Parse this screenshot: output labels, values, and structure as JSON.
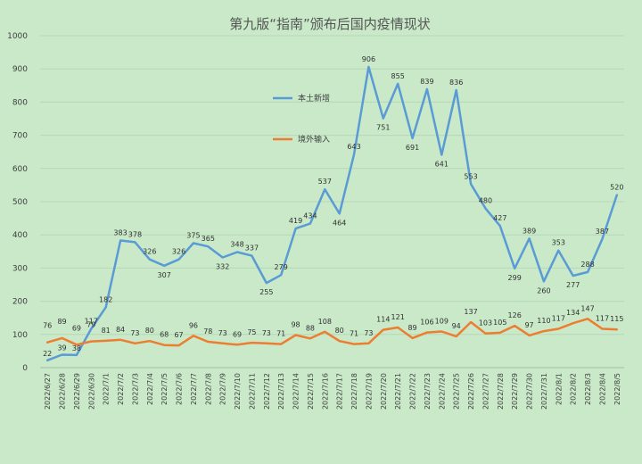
{
  "chart_data": {
    "type": "line",
    "title": "第九版“指南”颁布后国内疫情现状",
    "xlabel": "",
    "ylabel": "",
    "ylim": [
      0,
      1000
    ],
    "yticks": [
      0,
      100,
      200,
      300,
      400,
      500,
      600,
      700,
      800,
      900,
      1000
    ],
    "grid": "horizontal",
    "legend_position": "center-left",
    "categories": [
      "2022/6/27",
      "2022/6/28",
      "2022/6/29",
      "2022/6/30",
      "2022/7/1",
      "2022/7/2",
      "2022/7/3",
      "2022/7/4",
      "2022/7/5",
      "2022/7/6",
      "2022/7/7",
      "2022/7/8",
      "2022/7/9",
      "2022/7/10",
      "2022/7/11",
      "2022/7/12",
      "2022/7/13",
      "2022/7/14",
      "2022/7/15",
      "2022/7/16",
      "2022/7/17",
      "2022/7/18",
      "2022/7/19",
      "2022/7/20",
      "2022/7/21",
      "2022/7/22",
      "2022/7/23",
      "2022/7/24",
      "2022/7/25",
      "2022/7/26",
      "2022/7/27",
      "2022/7/28",
      "2022/7/29",
      "2022/7/30",
      "2022/7/31",
      "2022/8/1",
      "2022/8/2",
      "2022/8/3",
      "2022/8/4",
      "2022/8/5"
    ],
    "series": [
      {
        "name": "本土新增",
        "color": "#5b9bd5",
        "values": [
          22,
          39,
          38,
          117,
          182,
          383,
          378,
          326,
          307,
          326,
          375,
          365,
          332,
          348,
          337,
          255,
          279,
          419,
          434,
          537,
          464,
          643,
          906,
          751,
          855,
          691,
          839,
          641,
          836,
          553,
          480,
          427,
          299,
          389,
          260,
          353,
          277,
          288,
          387,
          520
        ]
      },
      {
        "name": "境外输入",
        "color": "#ed7d31",
        "values": [
          76,
          89,
          69,
          79,
          81,
          84,
          73,
          80,
          68,
          67,
          96,
          78,
          73,
          69,
          75,
          73,
          71,
          98,
          88,
          108,
          80,
          71,
          73,
          114,
          121,
          89,
          106,
          109,
          94,
          137,
          103,
          105,
          126,
          97,
          110,
          117,
          134,
          147,
          117,
          115
        ]
      }
    ]
  }
}
